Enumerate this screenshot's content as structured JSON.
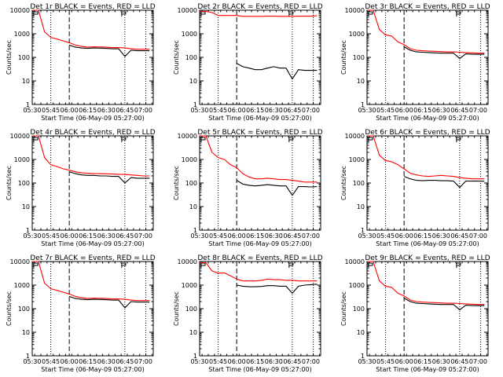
{
  "figure": {
    "ylabel": "Counts/sec",
    "xlabel": "Start Time (06-May-09 05:27:00)",
    "x_ticks": [
      "05:30",
      "05:45",
      "06:00",
      "06:15",
      "06:30",
      "06:45",
      "07:00"
    ],
    "y_ticks": [
      "1",
      "10",
      "100",
      "1000",
      "10000"
    ],
    "ylim": [
      1,
      10000
    ],
    "y_scale": "log",
    "colors": {
      "events": "#000000",
      "lld": "#ff0000"
    }
  },
  "chart_data": [
    {
      "type": "line",
      "title": "Det 1r BLACK = Events, RED = LLD",
      "x": [
        "05:30",
        "05:35",
        "05:40",
        "05:45",
        "05:50",
        "05:55",
        "06:00",
        "06:05",
        "06:10",
        "06:15",
        "06:20",
        "06:25",
        "06:30",
        "06:35",
        "06:40",
        "06:45",
        "06:50",
        "06:55",
        "07:00",
        "07:05"
      ],
      "series": [
        {
          "name": "BLACK = Events",
          "values": [
            null,
            null,
            null,
            null,
            null,
            null,
            330,
            270,
            250,
            240,
            250,
            245,
            240,
            230,
            230,
            110,
            200,
            190,
            190,
            190
          ]
        },
        {
          "name": "RED = LLD",
          "values": [
            10000,
            10000,
            1200,
            700,
            600,
            500,
            420,
            330,
            290,
            270,
            280,
            275,
            270,
            260,
            260,
            250,
            230,
            220,
            220,
            220
          ]
        }
      ]
    },
    {
      "type": "line",
      "title": "Det 2r BLACK = Events, RED = LLD",
      "x": [
        "05:30",
        "05:35",
        "05:40",
        "05:45",
        "05:50",
        "05:55",
        "06:00",
        "06:05",
        "06:10",
        "06:15",
        "06:20",
        "06:25",
        "06:30",
        "06:35",
        "06:40",
        "06:45",
        "06:50",
        "06:55",
        "07:00",
        "07:05"
      ],
      "series": [
        {
          "name": "BLACK = Events",
          "values": [
            null,
            null,
            null,
            null,
            null,
            null,
            55,
            40,
            35,
            30,
            30,
            35,
            40,
            35,
            35,
            12,
            30,
            28,
            28,
            28
          ]
        },
        {
          "name": "RED = LLD",
          "values": [
            9000,
            9000,
            8000,
            6000,
            6000,
            6000,
            6000,
            5500,
            5500,
            5500,
            5500,
            5600,
            5600,
            5500,
            5500,
            5500,
            5600,
            5600,
            5600,
            5800
          ]
        }
      ]
    },
    {
      "type": "line",
      "title": "Det 3r BLACK = Events, RED = LLD",
      "x": [
        "05:30",
        "05:35",
        "05:40",
        "05:45",
        "05:50",
        "05:55",
        "06:00",
        "06:05",
        "06:10",
        "06:15",
        "06:20",
        "06:25",
        "06:30",
        "06:35",
        "06:40",
        "06:45",
        "06:50",
        "06:55",
        "07:00",
        "07:05"
      ],
      "series": [
        {
          "name": "BLACK = Events",
          "values": [
            null,
            null,
            null,
            null,
            null,
            null,
            280,
            200,
            170,
            165,
            160,
            155,
            150,
            150,
            150,
            90,
            140,
            135,
            135,
            135
          ]
        },
        {
          "name": "RED = LLD",
          "values": [
            10000,
            10000,
            1500,
            900,
            800,
            450,
            350,
            230,
            200,
            190,
            185,
            180,
            175,
            170,
            170,
            165,
            160,
            155,
            150,
            150
          ]
        }
      ]
    },
    {
      "type": "line",
      "title": "Det 4r BLACK = Events, RED = LLD",
      "x": [
        "05:30",
        "05:35",
        "05:40",
        "05:45",
        "05:50",
        "05:55",
        "06:00",
        "06:05",
        "06:10",
        "06:15",
        "06:20",
        "06:25",
        "06:30",
        "06:35",
        "06:40",
        "06:45",
        "06:50",
        "06:55",
        "07:00",
        "07:05"
      ],
      "series": [
        {
          "name": "BLACK = Events",
          "values": [
            null,
            null,
            null,
            null,
            null,
            null,
            300,
            250,
            220,
            210,
            210,
            200,
            200,
            190,
            190,
            100,
            170,
            160,
            160,
            160
          ]
        },
        {
          "name": "RED = LLD",
          "values": [
            10000,
            10000,
            1200,
            600,
            500,
            400,
            350,
            300,
            270,
            260,
            250,
            250,
            245,
            240,
            235,
            230,
            220,
            210,
            200,
            200
          ]
        }
      ]
    },
    {
      "type": "line",
      "title": "Det 5r BLACK = Events, RED = LLD",
      "x": [
        "05:30",
        "05:35",
        "05:40",
        "05:45",
        "05:50",
        "05:55",
        "06:00",
        "06:05",
        "06:10",
        "06:15",
        "06:20",
        "06:25",
        "06:30",
        "06:35",
        "06:40",
        "06:45",
        "06:50",
        "06:55",
        "07:00",
        "07:05"
      ],
      "series": [
        {
          "name": "BLACK = Events",
          "values": [
            null,
            null,
            null,
            null,
            null,
            null,
            130,
            90,
            80,
            75,
            80,
            85,
            80,
            75,
            75,
            30,
            70,
            70,
            68,
            70
          ]
        },
        {
          "name": "RED = LLD",
          "values": [
            10000,
            10000,
            2000,
            1200,
            1000,
            600,
            450,
            250,
            180,
            150,
            150,
            160,
            150,
            140,
            140,
            130,
            120,
            110,
            110,
            110
          ]
        }
      ]
    },
    {
      "type": "line",
      "title": "Det 6r BLACK = Events, RED = LLD",
      "x": [
        "05:30",
        "05:35",
        "05:40",
        "05:45",
        "05:50",
        "05:55",
        "06:00",
        "06:05",
        "06:10",
        "06:15",
        "06:20",
        "06:25",
        "06:30",
        "06:35",
        "06:40",
        "06:45",
        "06:50",
        "06:55",
        "07:00",
        "07:05"
      ],
      "series": [
        {
          "name": "BLACK = Events",
          "values": [
            null,
            null,
            null,
            null,
            null,
            null,
            190,
            150,
            130,
            125,
            130,
            130,
            125,
            125,
            120,
            65,
            120,
            120,
            120,
            118
          ]
        },
        {
          "name": "RED = LLD",
          "values": [
            10000,
            10000,
            1500,
            900,
            800,
            600,
            400,
            260,
            220,
            200,
            190,
            200,
            210,
            200,
            190,
            170,
            160,
            150,
            150,
            150
          ]
        }
      ]
    },
    {
      "type": "line",
      "title": "Det 7r BLACK = Events, RED = LLD",
      "x": [
        "05:30",
        "05:35",
        "05:40",
        "05:45",
        "05:50",
        "05:55",
        "06:00",
        "06:05",
        "06:10",
        "06:15",
        "06:20",
        "06:25",
        "06:30",
        "06:35",
        "06:40",
        "06:45",
        "06:50",
        "06:55",
        "07:00",
        "07:05"
      ],
      "series": [
        {
          "name": "BLACK = Events",
          "values": [
            null,
            null,
            null,
            null,
            null,
            null,
            330,
            270,
            250,
            240,
            250,
            245,
            240,
            230,
            230,
            110,
            200,
            190,
            190,
            190
          ]
        },
        {
          "name": "RED = LLD",
          "values": [
            10000,
            10000,
            1200,
            700,
            600,
            500,
            420,
            330,
            290,
            270,
            280,
            275,
            270,
            260,
            260,
            250,
            230,
            220,
            220,
            220
          ]
        }
      ]
    },
    {
      "type": "line",
      "title": "Det 8r BLACK = Events, RED = LLD",
      "x": [
        "05:30",
        "05:35",
        "05:40",
        "05:45",
        "05:50",
        "05:55",
        "06:00",
        "06:05",
        "06:10",
        "06:15",
        "06:20",
        "06:25",
        "06:30",
        "06:35",
        "06:40",
        "06:45",
        "06:50",
        "06:55",
        "07:00",
        "07:05"
      ],
      "series": [
        {
          "name": "BLACK = Events",
          "values": [
            null,
            null,
            null,
            null,
            null,
            null,
            1000,
            900,
            850,
            850,
            880,
            950,
            950,
            900,
            900,
            450,
            900,
            1000,
            1050,
            1100
          ]
        },
        {
          "name": "RED = LLD",
          "values": [
            9000,
            9000,
            4000,
            3200,
            3300,
            2500,
            1800,
            1500,
            1500,
            1500,
            1600,
            1800,
            1700,
            1700,
            1600,
            1600,
            1500,
            1500,
            1500,
            1500
          ]
        }
      ]
    },
    {
      "type": "line",
      "title": "Det 9r BLACK = Events, RED = LLD",
      "x": [
        "05:30",
        "05:35",
        "05:40",
        "05:45",
        "05:50",
        "05:55",
        "06:00",
        "06:05",
        "06:10",
        "06:15",
        "06:20",
        "06:25",
        "06:30",
        "06:35",
        "06:40",
        "06:45",
        "06:50",
        "06:55",
        "07:00",
        "07:05"
      ],
      "series": [
        {
          "name": "BLACK = Events",
          "values": [
            null,
            null,
            null,
            null,
            null,
            null,
            280,
            200,
            170,
            165,
            160,
            155,
            150,
            150,
            150,
            90,
            140,
            135,
            135,
            135
          ]
        },
        {
          "name": "RED = LLD",
          "values": [
            10000,
            10000,
            1500,
            900,
            800,
            450,
            350,
            230,
            200,
            190,
            185,
            180,
            175,
            170,
            170,
            165,
            160,
            155,
            150,
            150
          ]
        }
      ]
    }
  ]
}
